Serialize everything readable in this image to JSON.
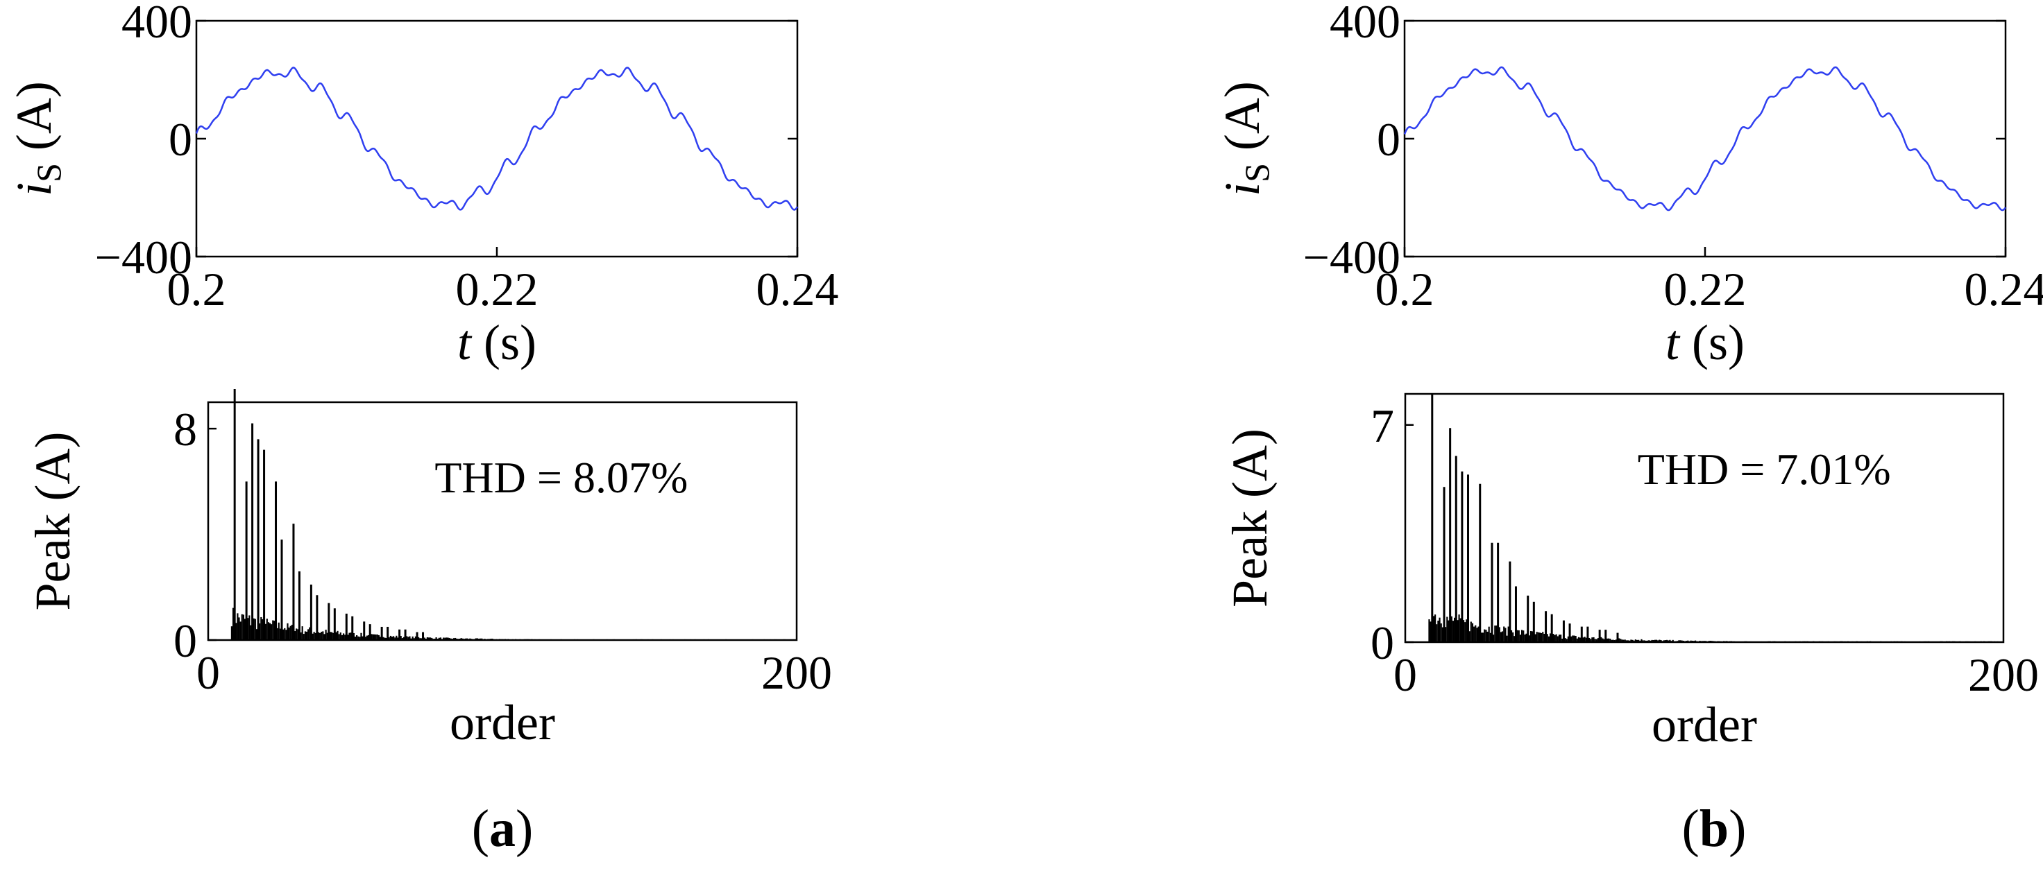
{
  "chart_data": [
    {
      "panel": "a",
      "type": "line",
      "xlabel": {
        "var": "t",
        "unit": "(s)"
      },
      "ylabel": {
        "var": "i",
        "sub": "S",
        "unit": "(A)"
      },
      "xlim": [
        0.2,
        0.24
      ],
      "ylim": [
        -400,
        400
      ],
      "xticks": [
        "0.2",
        "0.22",
        "0.24"
      ],
      "yticks": [
        "400",
        "0",
        "−400"
      ],
      "line_color": "#2f3ff0",
      "series": [
        {
          "amplitude": 225,
          "frequency_hz": 45,
          "ripple": 14
        }
      ]
    },
    {
      "panel": "a",
      "type": "bar",
      "xlabel": "order",
      "ylabel": "Peak (A)",
      "xlim": [
        0,
        200
      ],
      "ylim": [
        0,
        9
      ],
      "xticks": [
        "0",
        "200"
      ],
      "yticks": [
        "8",
        "0"
      ],
      "annotation": "THD = 8.07%",
      "harmonics": [
        {
          "order": 9,
          "peak": 9.5
        },
        {
          "order": 13,
          "peak": 6.0
        },
        {
          "order": 15,
          "peak": 8.2
        },
        {
          "order": 17,
          "peak": 7.6
        },
        {
          "order": 19,
          "peak": 7.2
        },
        {
          "order": 23,
          "peak": 6.0
        },
        {
          "order": 25,
          "peak": 3.8
        },
        {
          "order": 29,
          "peak": 4.4
        },
        {
          "order": 31,
          "peak": 2.6
        },
        {
          "order": 35,
          "peak": 2.1
        },
        {
          "order": 37,
          "peak": 1.7
        },
        {
          "order": 41,
          "peak": 1.4
        },
        {
          "order": 43,
          "peak": 1.2
        },
        {
          "order": 47,
          "peak": 1.0
        },
        {
          "order": 49,
          "peak": 0.9
        },
        {
          "order": 53,
          "peak": 0.7
        },
        {
          "order": 55,
          "peak": 0.6
        },
        {
          "order": 59,
          "peak": 0.5
        },
        {
          "order": 61,
          "peak": 0.5
        },
        {
          "order": 65,
          "peak": 0.4
        },
        {
          "order": 67,
          "peak": 0.4
        },
        {
          "order": 71,
          "peak": 0.3
        },
        {
          "order": 73,
          "peak": 0.3
        }
      ]
    },
    {
      "panel": "b",
      "type": "line",
      "xlabel": {
        "var": "t",
        "unit": "(s)"
      },
      "ylabel": {
        "var": "i",
        "sub": "S",
        "unit": "(A)"
      },
      "xlim": [
        0.2,
        0.24
      ],
      "ylim": [
        -400,
        400
      ],
      "xticks": [
        "0.2",
        "0.22",
        "0.24"
      ],
      "yticks": [
        "400",
        "0",
        "−400"
      ],
      "line_color": "#2f3ff0",
      "series": [
        {
          "amplitude": 230,
          "frequency_hz": 45,
          "ripple": 12
        }
      ]
    },
    {
      "panel": "b",
      "type": "bar",
      "xlabel": "order",
      "ylabel": "Peak (A)",
      "xlim": [
        0,
        200
      ],
      "ylim": [
        0,
        8
      ],
      "xticks": [
        "0",
        "200"
      ],
      "yticks": [
        "7",
        "0"
      ],
      "annotation": "THD = 7.01%",
      "harmonics": [
        {
          "order": 9,
          "peak": 8.0
        },
        {
          "order": 13,
          "peak": 5.0
        },
        {
          "order": 15,
          "peak": 6.9
        },
        {
          "order": 17,
          "peak": 6.0
        },
        {
          "order": 19,
          "peak": 5.5
        },
        {
          "order": 21,
          "peak": 5.4
        },
        {
          "order": 25,
          "peak": 5.1
        },
        {
          "order": 29,
          "peak": 3.2
        },
        {
          "order": 31,
          "peak": 3.2
        },
        {
          "order": 35,
          "peak": 2.6
        },
        {
          "order": 37,
          "peak": 1.8
        },
        {
          "order": 41,
          "peak": 1.5
        },
        {
          "order": 43,
          "peak": 1.3
        },
        {
          "order": 47,
          "peak": 1.0
        },
        {
          "order": 49,
          "peak": 0.9
        },
        {
          "order": 53,
          "peak": 0.7
        },
        {
          "order": 55,
          "peak": 0.6
        },
        {
          "order": 59,
          "peak": 0.5
        },
        {
          "order": 61,
          "peak": 0.5
        },
        {
          "order": 65,
          "peak": 0.4
        },
        {
          "order": 67,
          "peak": 0.4
        },
        {
          "order": 71,
          "peak": 0.3
        }
      ]
    }
  ],
  "panel_labels": [
    {
      "open": "(",
      "letter": "a",
      "close": ")"
    },
    {
      "open": "(",
      "letter": "b",
      "close": ")"
    }
  ]
}
